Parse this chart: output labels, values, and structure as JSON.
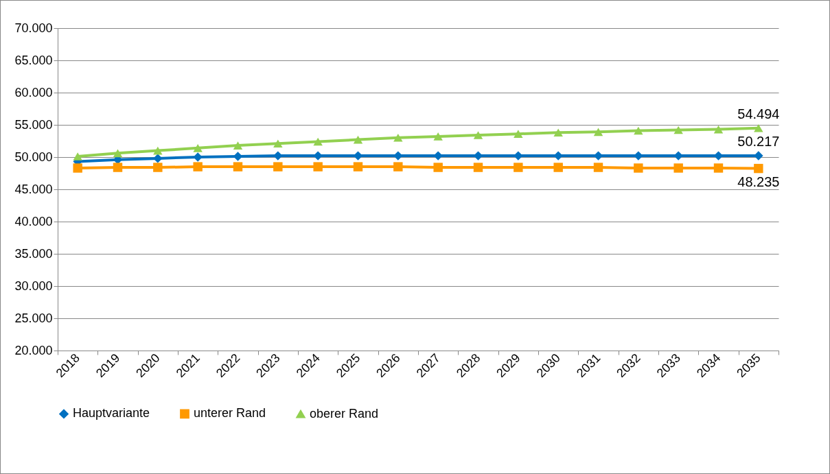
{
  "chart_data": {
    "type": "line",
    "categories": [
      "2018",
      "2019",
      "2020",
      "2021",
      "2022",
      "2023",
      "2024",
      "2025",
      "2026",
      "2027",
      "2028",
      "2029",
      "2030",
      "2031",
      "2032",
      "2033",
      "2034",
      "2035"
    ],
    "series": [
      {
        "name": "Hauptvariante",
        "color": "#0070c0",
        "marker": "diamond",
        "values": [
          49300,
          49600,
          49800,
          50000,
          50100,
          50200,
          50200,
          50200,
          50200,
          50200,
          50200,
          50200,
          50200,
          50200,
          50200,
          50200,
          50200,
          50217
        ],
        "value_labels": [
          null,
          null,
          null,
          null,
          null,
          null,
          null,
          null,
          null,
          null,
          null,
          null,
          null,
          null,
          null,
          null,
          null,
          "50.217"
        ]
      },
      {
        "name": "unterer Rand",
        "color": "#ff9900",
        "marker": "square",
        "values": [
          48300,
          48400,
          48400,
          48500,
          48500,
          48500,
          48500,
          48500,
          48500,
          48400,
          48400,
          48400,
          48400,
          48400,
          48300,
          48300,
          48300,
          48235
        ],
        "value_labels": [
          null,
          null,
          null,
          null,
          null,
          null,
          null,
          null,
          null,
          null,
          null,
          null,
          null,
          null,
          null,
          null,
          null,
          "48.235"
        ]
      },
      {
        "name": "oberer Rand",
        "color": "#92d050",
        "marker": "triangle",
        "values": [
          50100,
          50600,
          51000,
          51400,
          51800,
          52100,
          52400,
          52700,
          53000,
          53200,
          53400,
          53600,
          53800,
          53900,
          54100,
          54200,
          54300,
          54494
        ],
        "value_labels": [
          null,
          null,
          null,
          null,
          null,
          null,
          null,
          null,
          null,
          null,
          null,
          null,
          null,
          null,
          null,
          null,
          null,
          "54.494"
        ]
      }
    ],
    "ylim": [
      20000,
      70000
    ],
    "yticks": [
      {
        "value": 20000,
        "label": "20.000"
      },
      {
        "value": 25000,
        "label": "25.000"
      },
      {
        "value": 30000,
        "label": "30.000"
      },
      {
        "value": 35000,
        "label": "35.000"
      },
      {
        "value": 40000,
        "label": "40.000"
      },
      {
        "value": 45000,
        "label": "45.000"
      },
      {
        "value": 50000,
        "label": "50.000"
      },
      {
        "value": 55000,
        "label": "55.000"
      },
      {
        "value": 60000,
        "label": "60.000"
      },
      {
        "value": 65000,
        "label": "65.000"
      },
      {
        "value": 70000,
        "label": "70.000"
      }
    ],
    "grid": "y",
    "legend": "bottom",
    "line_style": "solid"
  }
}
